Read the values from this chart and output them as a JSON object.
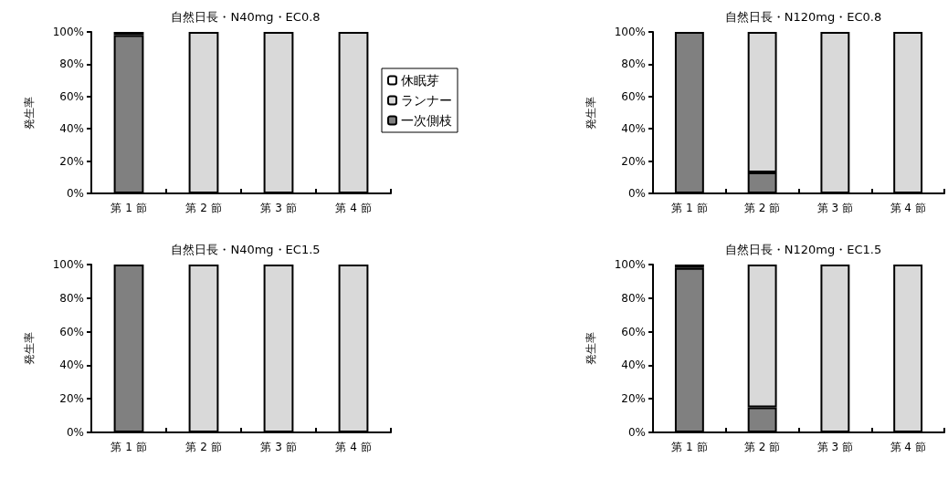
{
  "chart_data": [
    {
      "type": "bar",
      "title": "自然日長・N40mg・EC0.8",
      "ylabel": "発生率",
      "categories": [
        "第 1 節",
        "第 2 節",
        "第 3 節",
        "第 4 節"
      ],
      "stacked": true,
      "ylim": [
        0,
        100
      ],
      "yticks": [
        {
          "value": 0,
          "label": "0%"
        },
        {
          "value": 20,
          "label": "20%"
        },
        {
          "value": 40,
          "label": "40%"
        },
        {
          "value": 60,
          "label": "60%"
        },
        {
          "value": 80,
          "label": "80%"
        },
        {
          "value": 100,
          "label": "100%"
        }
      ],
      "grid": false,
      "legend": "right",
      "series": [
        {
          "name": "一次側枝",
          "color": "#808080",
          "values": [
            98,
            0,
            0,
            0
          ]
        },
        {
          "name": "ランナー",
          "color": "#d9d9d9",
          "values": [
            2,
            100,
            100,
            100
          ]
        },
        {
          "name": "休眠芽",
          "color": "#ffffff",
          "values": [
            0,
            0,
            0,
            0
          ]
        }
      ]
    },
    {
      "type": "bar",
      "title": "自然日長・N120mg・EC0.8",
      "ylabel": "発生率",
      "categories": [
        "第 1 節",
        "第 2 節",
        "第 3 節",
        "第 4 節"
      ],
      "stacked": true,
      "ylim": [
        0,
        100
      ],
      "yticks": [
        {
          "value": 0,
          "label": "0%"
        },
        {
          "value": 20,
          "label": "20%"
        },
        {
          "value": 40,
          "label": "40%"
        },
        {
          "value": 60,
          "label": "60%"
        },
        {
          "value": 80,
          "label": "80%"
        },
        {
          "value": 100,
          "label": "100%"
        }
      ],
      "grid": false,
      "series": [
        {
          "color": "#808080",
          "values": [
            100,
            13,
            0,
            0
          ]
        },
        {
          "color": "#d9d9d9",
          "values": [
            0,
            87,
            100,
            100
          ]
        },
        {
          "color": "#ffffff",
          "values": [
            0,
            0,
            0,
            0
          ]
        }
      ]
    },
    {
      "type": "bar",
      "title": "自然日長・N40mg・EC1.5",
      "ylabel": "発生率",
      "categories": [
        "第 1 節",
        "第 2 節",
        "第 3 節",
        "第 4 節"
      ],
      "stacked": true,
      "ylim": [
        0,
        100
      ],
      "yticks": [
        {
          "value": 0,
          "label": "0%"
        },
        {
          "value": 20,
          "label": "20%"
        },
        {
          "value": 40,
          "label": "40%"
        },
        {
          "value": 60,
          "label": "60%"
        },
        {
          "value": 80,
          "label": "80%"
        },
        {
          "value": 100,
          "label": "100%"
        }
      ],
      "grid": false,
      "series": [
        {
          "color": "#808080",
          "values": [
            100,
            0,
            0,
            0
          ]
        },
        {
          "color": "#d9d9d9",
          "values": [
            0,
            100,
            100,
            100
          ]
        },
        {
          "color": "#ffffff",
          "values": [
            0,
            0,
            0,
            0
          ]
        }
      ]
    },
    {
      "type": "bar",
      "title": "自然日長・N120mg・EC1.5",
      "ylabel": "発生率",
      "categories": [
        "第 1 節",
        "第 2 節",
        "第 3 節",
        "第 4 節"
      ],
      "stacked": true,
      "ylim": [
        0,
        100
      ],
      "yticks": [
        {
          "value": 0,
          "label": "0%"
        },
        {
          "value": 20,
          "label": "20%"
        },
        {
          "value": 40,
          "label": "40%"
        },
        {
          "value": 60,
          "label": "60%"
        },
        {
          "value": 80,
          "label": "80%"
        },
        {
          "value": 100,
          "label": "100%"
        }
      ],
      "grid": false,
      "series": [
        {
          "color": "#808080",
          "values": [
            98,
            15,
            0,
            0
          ]
        },
        {
          "color": "#d9d9d9",
          "values": [
            2,
            85,
            100,
            100
          ]
        },
        {
          "color": "#ffffff",
          "values": [
            0,
            0,
            0,
            0
          ]
        }
      ]
    }
  ]
}
